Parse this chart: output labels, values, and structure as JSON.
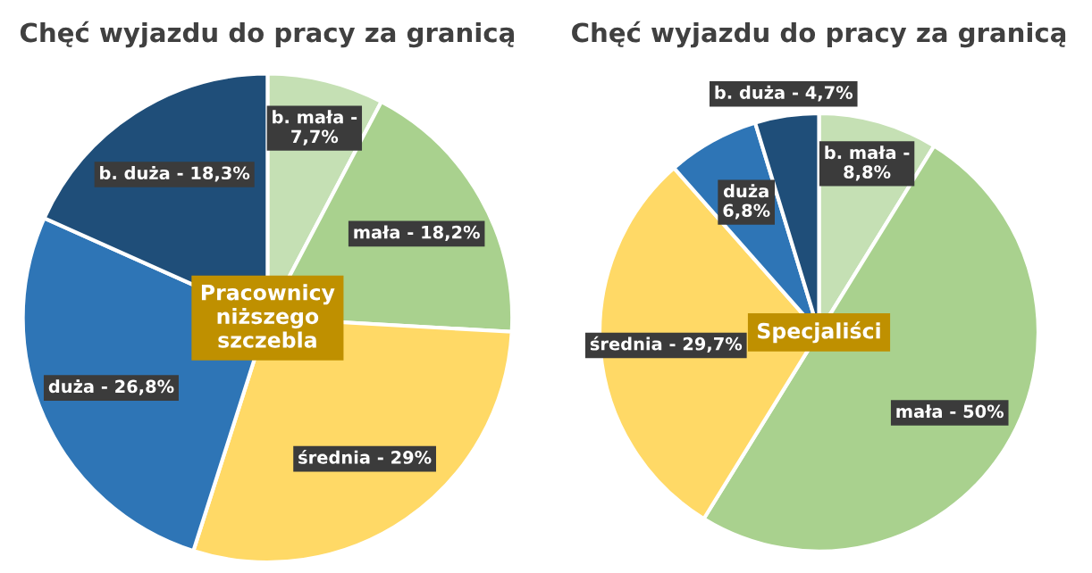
{
  "chart_data": [
    {
      "type": "pie",
      "title": "Chęć wyjazdu do pracy za granicą",
      "categories": [
        "b. mała -",
        "mała -",
        "średnia -",
        "duża -",
        "b. duża -"
      ],
      "values": [
        7.7,
        18.2,
        29,
        26.8,
        18.3
      ],
      "colors": [
        "#c5e0b4",
        "#a9d18e",
        "#ffd966",
        "#2e75b6",
        "#1f4e79"
      ],
      "value_labels": [
        "7,7%",
        "18,2%",
        "29%",
        "26,8%",
        "18,3%"
      ],
      "annotations": [
        "Pracownicy\nniższego\nszczebla"
      ]
    },
    {
      "type": "pie",
      "title": "Chęć wyjazdu do pracy za granicą",
      "categories": [
        "b. mała -",
        "mała -",
        "średnia -",
        "duża",
        "b. duża -"
      ],
      "values": [
        8.8,
        50,
        29.7,
        6.8,
        4.7
      ],
      "colors": [
        "#c5e0b4",
        "#a9d18e",
        "#ffd966",
        "#2e75b6",
        "#1f4e79"
      ],
      "value_labels": [
        "8,8%",
        "50%",
        "29,7%",
        "6,8%",
        "4,7%"
      ],
      "annotations": [
        "Specjaliści"
      ]
    }
  ]
}
